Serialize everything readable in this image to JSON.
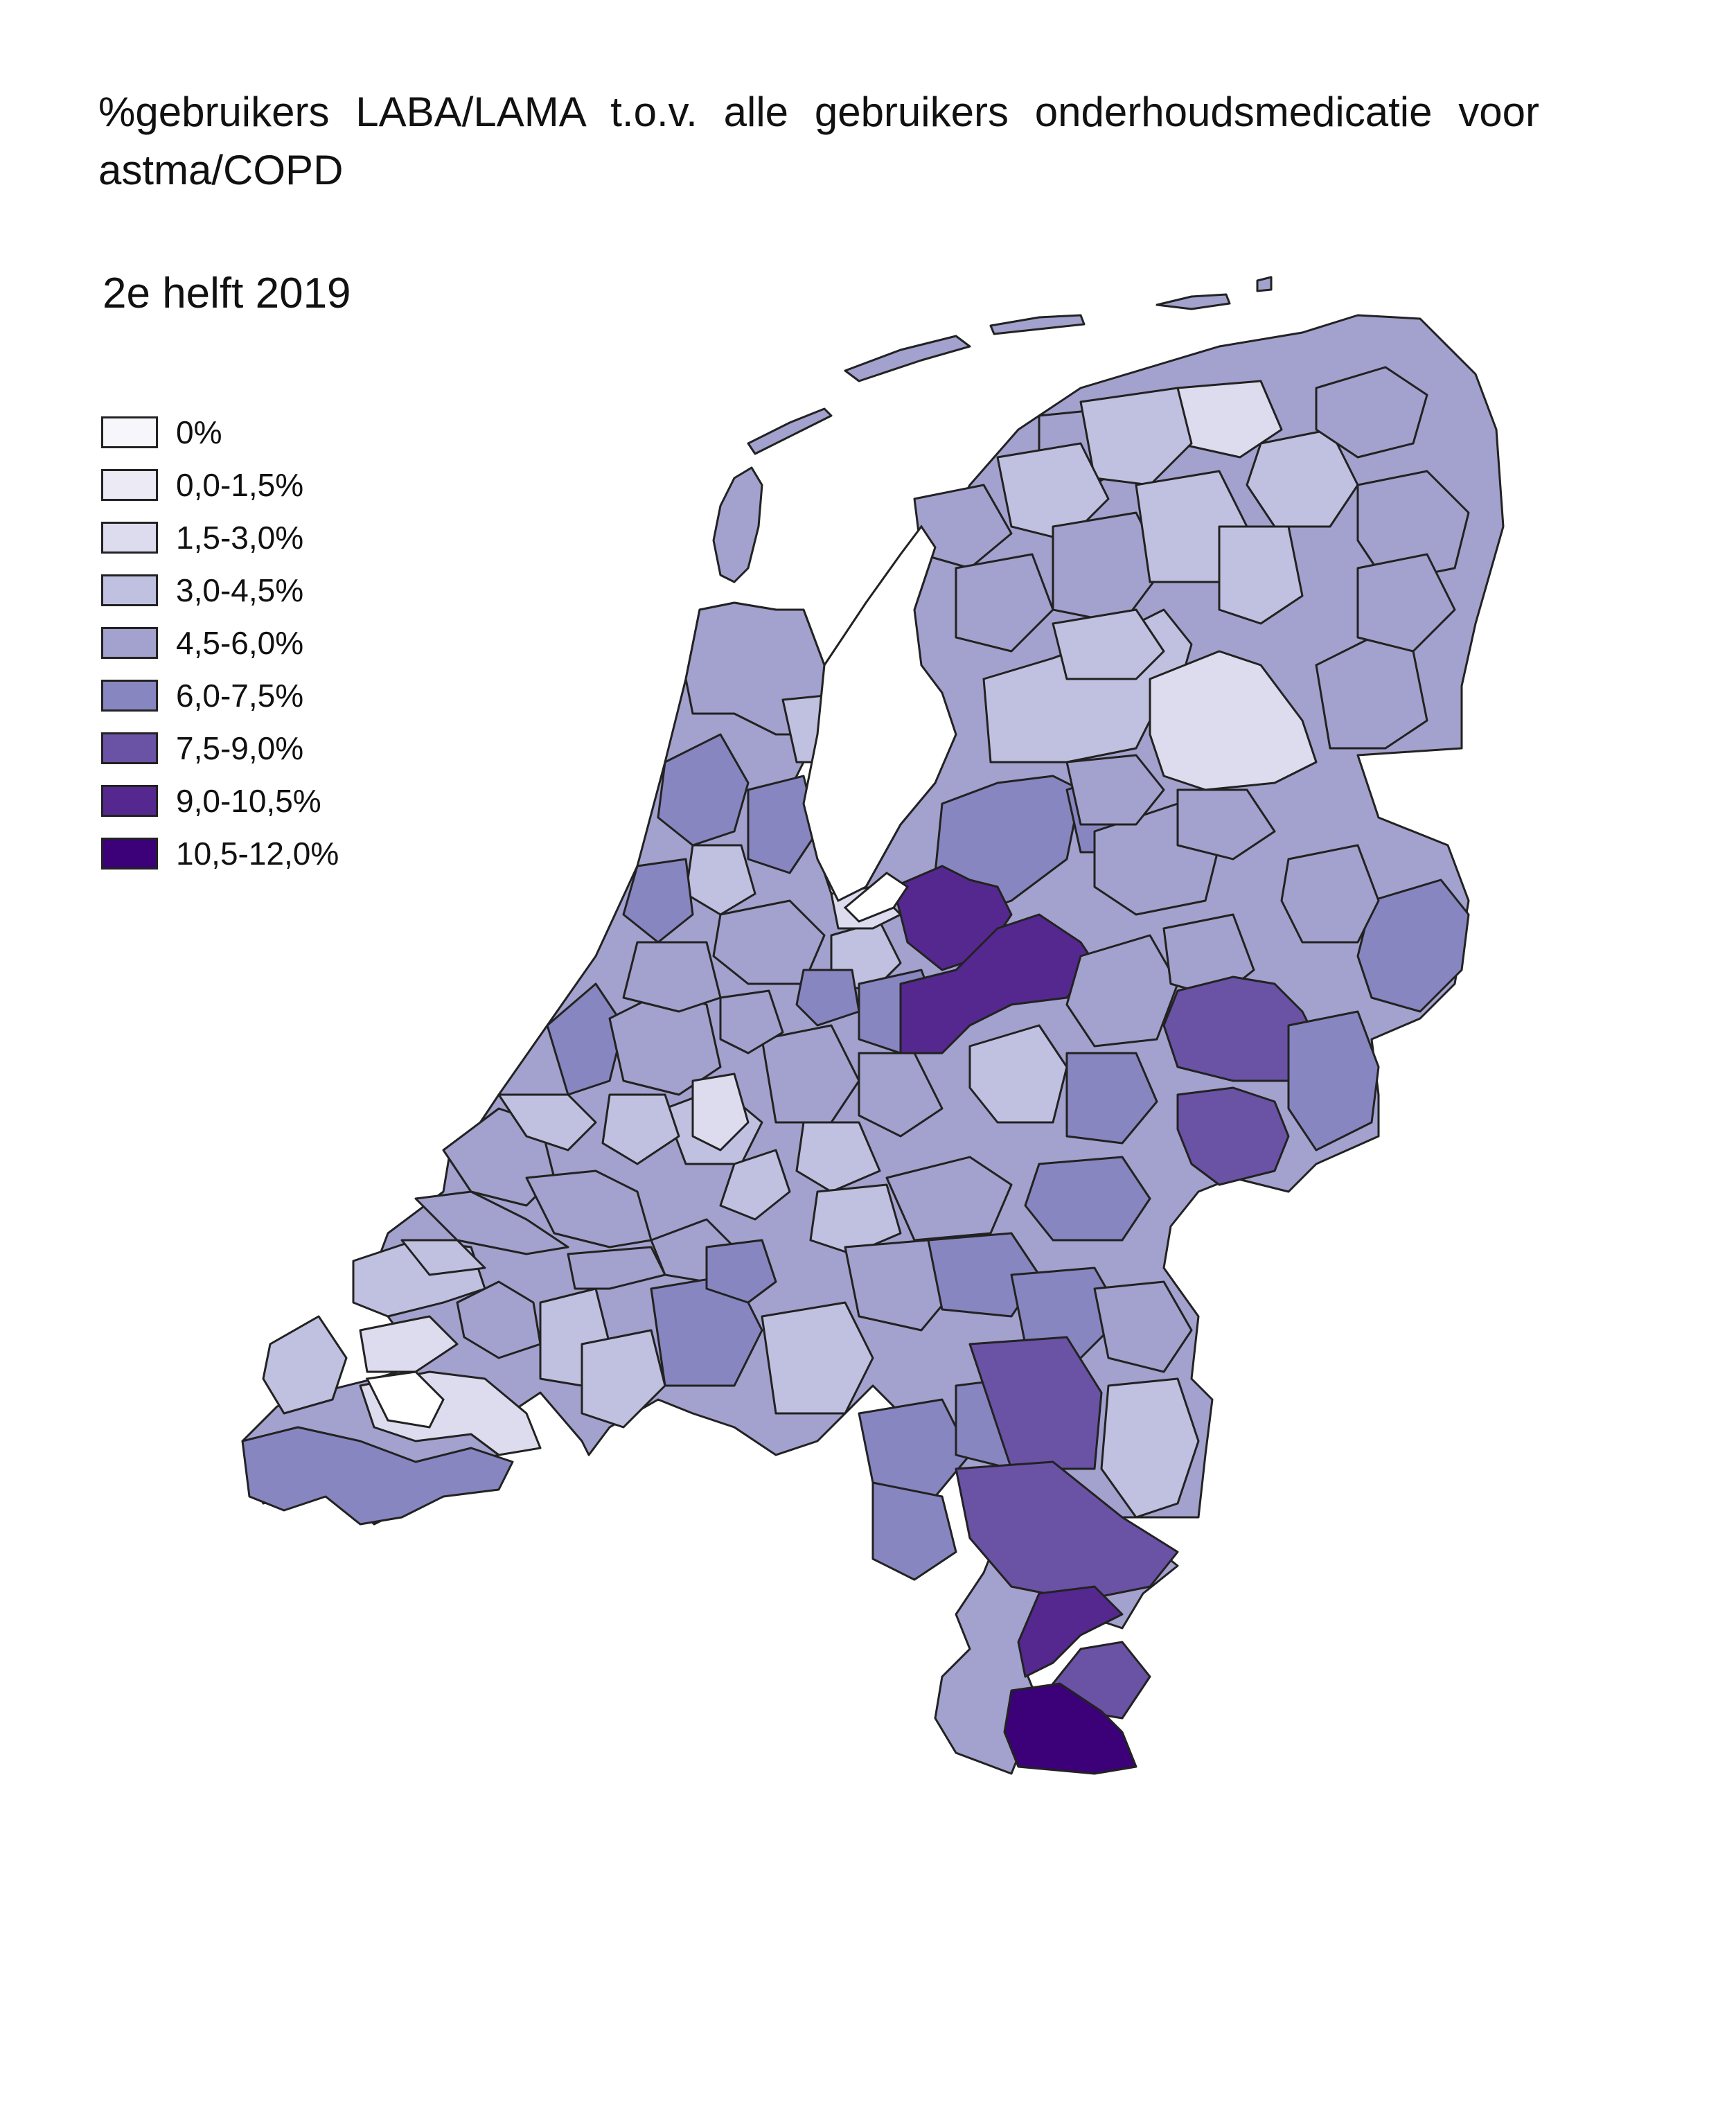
{
  "title": "%gebruikers LABA/LAMA t.o.v. alle gebruikers onderhoudsmedicatie voor astma/COPD",
  "subtitle": "2e helft 2019",
  "legend": [
    {
      "label": "0%",
      "color": "#f7f6fb"
    },
    {
      "label": "0,0-1,5%",
      "color": "#ecebf5"
    },
    {
      "label": "1,5-3,0%",
      "color": "#dddcee"
    },
    {
      "label": "3,0-4,5%",
      "color": "#c0c1e0"
    },
    {
      "label": "4,5-6,0%",
      "color": "#a3a1cd"
    },
    {
      "label": "6,0-7,5%",
      "color": "#8786c0"
    },
    {
      "label": "7,5-9,0%",
      "color": "#6a52a5"
    },
    {
      "label": "9,0-10,5%",
      "color": "#55288f"
    },
    {
      "label": "10,5-12,0%",
      "color": "#3c0178"
    }
  ]
}
